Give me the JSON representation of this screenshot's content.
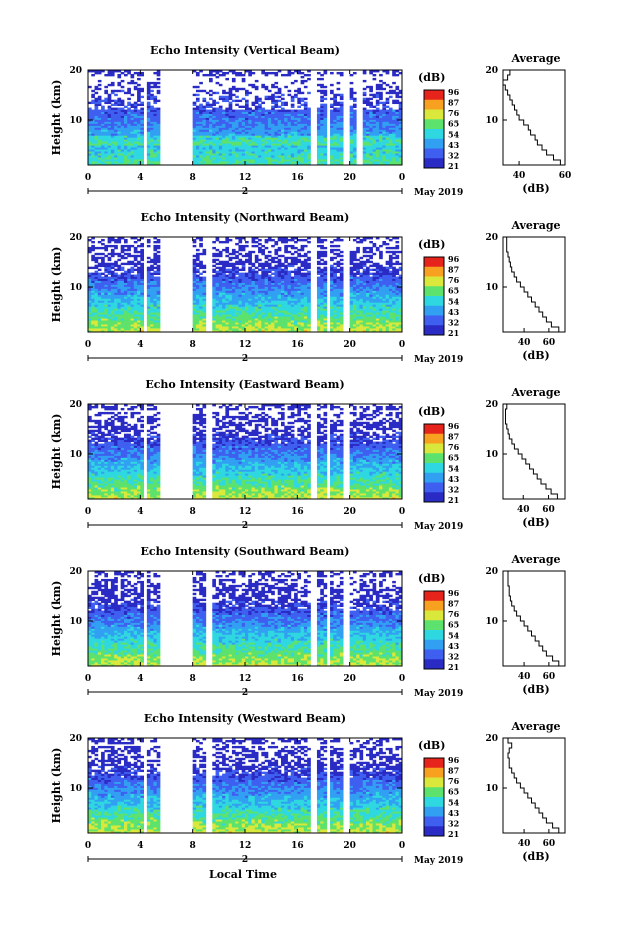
{
  "figure": {
    "common_xlabel": "Local Time",
    "date_label": "May 2019",
    "date_marker": "2",
    "colorbar_unit": "(dB)",
    "colorbar_ticks": [
      "96",
      "87",
      "76",
      "65",
      "54",
      "43",
      "32",
      "21"
    ],
    "avg_title": "Average",
    "avg_xlabel": "(dB)",
    "ylabel": "Height (km)",
    "colors": {
      "colormap": [
        "#2a2bc4",
        "#3e5ff0",
        "#32a0f2",
        "#2fd8e0",
        "#5de26d",
        "#d9e83a",
        "#f8a020",
        "#e6241c"
      ],
      "gap": "#ffffff",
      "axis": "#000000"
    }
  },
  "chart_data": [
    {
      "type": "heatmap",
      "title": "Echo Intensity (Vertical Beam)",
      "xlabel": "",
      "ylabel": "Height (km)",
      "x_ticks": [
        "0",
        "4",
        "8",
        "12",
        "16",
        "20",
        "0"
      ],
      "y_ticks": [
        "10",
        "20"
      ],
      "xlim": [
        0,
        24
      ],
      "ylim": [
        1,
        20
      ],
      "zlim": [
        21,
        96
      ],
      "data_gaps_hours": [
        [
          4.2,
          4.5
        ],
        [
          5.5,
          7.9
        ],
        [
          17.1,
          17.5
        ],
        [
          18.3,
          18.6
        ],
        [
          19.6,
          19.9
        ],
        [
          20.6,
          20.9
        ]
      ],
      "average_profile": {
        "title": "Average",
        "xlabel": "(dB)",
        "x_ticks": [
          "40",
          "60"
        ],
        "xlim": [
          33,
          60
        ],
        "ylim": [
          1,
          20
        ],
        "x": [
          60,
          58,
          55,
          52,
          50,
          48,
          47,
          45,
          44,
          42,
          40,
          39,
          38,
          37,
          36,
          35,
          34,
          33,
          35,
          36
        ],
        "y": [
          1,
          2,
          3,
          4,
          5,
          6,
          7,
          8,
          9,
          10,
          11,
          12,
          13,
          14,
          15,
          16,
          17,
          18,
          19,
          20
        ]
      }
    },
    {
      "type": "heatmap",
      "title": "Echo Intensity (Northward Beam)",
      "xlabel": "",
      "ylabel": "Height (km)",
      "x_ticks": [
        "0",
        "4",
        "8",
        "12",
        "16",
        "20",
        "0"
      ],
      "y_ticks": [
        "10",
        "20"
      ],
      "xlim": [
        0,
        24
      ],
      "ylim": [
        1,
        20
      ],
      "zlim": [
        21,
        96
      ],
      "data_gaps_hours": [
        [
          4.2,
          4.5
        ],
        [
          5.5,
          7.9
        ],
        [
          9.1,
          9.4
        ],
        [
          17.1,
          17.5
        ],
        [
          18.3,
          18.6
        ],
        [
          19.6,
          19.9
        ]
      ],
      "average_profile": {
        "title": "Average",
        "xlabel": "(dB)",
        "x_ticks": [
          "40",
          "60"
        ],
        "xlim": [
          23,
          73
        ],
        "ylim": [
          1,
          20
        ],
        "x": [
          72,
          68,
          62,
          58,
          55,
          52,
          49,
          46,
          43,
          40,
          37,
          34,
          32,
          30,
          29,
          28,
          27,
          26,
          26,
          26
        ],
        "y": [
          1,
          2,
          3,
          4,
          5,
          6,
          7,
          8,
          9,
          10,
          11,
          12,
          13,
          14,
          15,
          16,
          17,
          18,
          19,
          20
        ]
      }
    },
    {
      "type": "heatmap",
      "title": "Echo Intensity (Eastward Beam)",
      "xlabel": "",
      "ylabel": "Height (km)",
      "x_ticks": [
        "0",
        "4",
        "8",
        "12",
        "16",
        "20",
        "0"
      ],
      "y_ticks": [
        "10",
        "20"
      ],
      "xlim": [
        0,
        24
      ],
      "ylim": [
        1,
        20
      ],
      "zlim": [
        21,
        96
      ],
      "data_gaps_hours": [
        [
          4.2,
          4.5
        ],
        [
          5.5,
          7.9
        ],
        [
          9.1,
          9.4
        ],
        [
          17.1,
          17.5
        ],
        [
          18.3,
          18.6
        ],
        [
          19.6,
          19.9
        ]
      ],
      "average_profile": {
        "title": "Average",
        "xlabel": "(dB)",
        "x_ticks": [
          "40",
          "60"
        ],
        "xlim": [
          24,
          73
        ],
        "ylim": [
          1,
          20
        ],
        "x": [
          72,
          67,
          62,
          58,
          54,
          51,
          48,
          45,
          42,
          39,
          36,
          33,
          31,
          29,
          28,
          27,
          26,
          26,
          26,
          27
        ],
        "y": [
          1,
          2,
          3,
          4,
          5,
          6,
          7,
          8,
          9,
          10,
          11,
          12,
          13,
          14,
          15,
          16,
          17,
          18,
          19,
          20
        ]
      }
    },
    {
      "type": "heatmap",
      "title": "Echo Intensity (Southward Beam)",
      "xlabel": "",
      "ylabel": "Height (km)",
      "x_ticks": [
        "0",
        "4",
        "8",
        "12",
        "16",
        "20",
        "0"
      ],
      "y_ticks": [
        "10",
        "20"
      ],
      "xlim": [
        0,
        24
      ],
      "ylim": [
        1,
        20
      ],
      "zlim": [
        21,
        96
      ],
      "data_gaps_hours": [
        [
          4.2,
          4.5
        ],
        [
          5.5,
          7.9
        ],
        [
          9.1,
          9.4
        ],
        [
          17.1,
          17.5
        ],
        [
          18.3,
          18.6
        ],
        [
          19.6,
          19.9
        ]
      ],
      "average_profile": {
        "title": "Average",
        "xlabel": "(dB)",
        "x_ticks": [
          "40",
          "60"
        ],
        "xlim": [
          23,
          73
        ],
        "ylim": [
          1,
          20
        ],
        "x": [
          72,
          68,
          63,
          58,
          55,
          52,
          49,
          46,
          43,
          40,
          37,
          34,
          32,
          30,
          29,
          28,
          28,
          27,
          27,
          27
        ],
        "y": [
          1,
          2,
          3,
          4,
          5,
          6,
          7,
          8,
          9,
          10,
          11,
          12,
          13,
          14,
          15,
          16,
          17,
          18,
          19,
          20
        ]
      }
    },
    {
      "type": "heatmap",
      "title": "Echo Intensity (Westward Beam)",
      "xlabel": "Local Time",
      "ylabel": "Height (km)",
      "x_ticks": [
        "0",
        "4",
        "8",
        "12",
        "16",
        "20",
        "0"
      ],
      "y_ticks": [
        "10",
        "20"
      ],
      "xlim": [
        0,
        24
      ],
      "ylim": [
        1,
        20
      ],
      "zlim": [
        21,
        96
      ],
      "data_gaps_hours": [
        [
          4.2,
          4.5
        ],
        [
          5.5,
          7.9
        ],
        [
          9.1,
          9.4
        ],
        [
          17.1,
          17.5
        ],
        [
          18.3,
          18.6
        ],
        [
          19.6,
          19.9
        ]
      ],
      "average_profile": {
        "title": "Average",
        "xlabel": "(dB)",
        "x_ticks": [
          "40",
          "60"
        ],
        "xlim": [
          23,
          73
        ],
        "ylim": [
          1,
          20
        ],
        "x": [
          72,
          68,
          63,
          58,
          55,
          52,
          49,
          46,
          43,
          40,
          37,
          34,
          32,
          30,
          28,
          28,
          27,
          28,
          30,
          27
        ],
        "y": [
          1,
          2,
          3,
          4,
          5,
          6,
          7,
          8,
          9,
          10,
          11,
          12,
          13,
          14,
          15,
          16,
          17,
          18,
          19,
          20
        ]
      }
    }
  ]
}
